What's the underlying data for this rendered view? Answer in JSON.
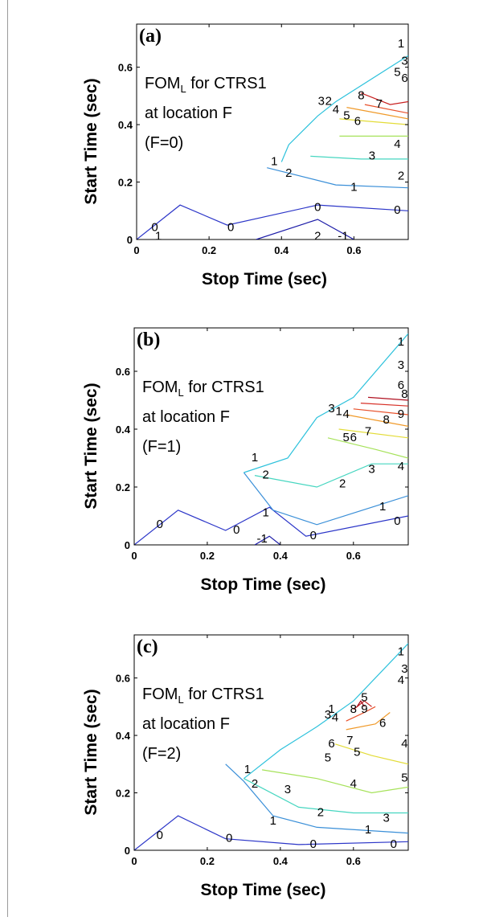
{
  "chart_data": [
    {
      "type": "contour",
      "panel_label": "(a)",
      "annotation_lines": [
        {
          "text": "FOM",
          "subscript": "L",
          "rest": " for CTRS1"
        },
        {
          "text": "at location F"
        },
        {
          "text": "(F=0)"
        }
      ],
      "xlabel": "Stop Time (sec)",
      "ylabel": "Start Time (sec)",
      "xlim": [
        0,
        0.75
      ],
      "ylim": [
        0,
        0.75
      ],
      "xticks": [
        0,
        0.2,
        0.4,
        0.6
      ],
      "yticks": [
        0,
        0.2,
        0.4,
        0.6
      ],
      "xtick_labels": [
        "0",
        "0.2",
        "0.4",
        "0.6"
      ],
      "ytick_labels": [
        "0",
        "0.2",
        "0.4",
        "0.6"
      ],
      "contours": [
        {
          "level": "-1",
          "color": "#1c1ca8",
          "points": [
            [
              0.33,
              0.0
            ],
            [
              0.5,
              0.07
            ],
            [
              0.6,
              0.0
            ]
          ]
        },
        {
          "level": "0",
          "color": "#2b35c8",
          "points": [
            [
              0.0,
              0.0
            ],
            [
              0.12,
              0.12
            ],
            [
              0.25,
              0.05
            ],
            [
              0.5,
              0.12
            ],
            [
              0.75,
              0.1
            ]
          ]
        },
        {
          "level": "1",
          "color": "#3a8fd8",
          "points": [
            [
              0.36,
              0.25
            ],
            [
              0.55,
              0.19
            ],
            [
              0.75,
              0.18
            ]
          ]
        },
        {
          "level": "2",
          "color": "#2ec2dc",
          "points": [
            [
              0.4,
              0.27
            ],
            [
              0.42,
              0.33
            ],
            [
              0.5,
              0.43
            ],
            [
              0.55,
              0.48
            ],
            [
              0.75,
              0.64
            ]
          ]
        },
        {
          "level": "3",
          "color": "#46d6c0",
          "points": [
            [
              0.48,
              0.29
            ],
            [
              0.62,
              0.28
            ],
            [
              0.75,
              0.28
            ]
          ]
        },
        {
          "level": "4",
          "color": "#a6e25a",
          "points": [
            [
              0.56,
              0.36
            ],
            [
              0.68,
              0.36
            ],
            [
              0.75,
              0.36
            ]
          ]
        },
        {
          "level": "5",
          "color": "#e3dc38",
          "points": [
            [
              0.56,
              0.42
            ],
            [
              0.75,
              0.4
            ]
          ]
        },
        {
          "level": "6",
          "color": "#f09a2a",
          "points": [
            [
              0.58,
              0.46
            ],
            [
              0.75,
              0.42
            ]
          ]
        },
        {
          "level": "7",
          "color": "#e8502a",
          "points": [
            [
              0.63,
              0.47
            ],
            [
              0.75,
              0.44
            ]
          ]
        },
        {
          "level": "8",
          "color": "#c81e1e",
          "points": [
            [
              0.62,
              0.51
            ],
            [
              0.7,
              0.47
            ],
            [
              0.75,
              0.48
            ]
          ]
        }
      ],
      "labels": [
        {
          "text": "0",
          "x": 0.05,
          "y": 0.04
        },
        {
          "text": "0",
          "x": 0.26,
          "y": 0.04
        },
        {
          "text": "0",
          "x": 0.5,
          "y": 0.11
        },
        {
          "text": "0",
          "x": 0.72,
          "y": 0.1
        },
        {
          "text": "1",
          "x": 0.06,
          "y": 0.01
        },
        {
          "text": "1",
          "x": 0.38,
          "y": 0.27
        },
        {
          "text": "1",
          "x": 0.6,
          "y": 0.18
        },
        {
          "text": "2",
          "x": 0.42,
          "y": 0.23
        },
        {
          "text": "2",
          "x": 0.73,
          "y": 0.22
        },
        {
          "text": "3",
          "x": 0.65,
          "y": 0.29
        },
        {
          "text": "4",
          "x": 0.72,
          "y": 0.33
        },
        {
          "text": "5",
          "x": 0.58,
          "y": 0.43
        },
        {
          "text": "6",
          "x": 0.61,
          "y": 0.41
        },
        {
          "text": "7",
          "x": 0.67,
          "y": 0.47
        },
        {
          "text": "8",
          "x": 0.62,
          "y": 0.5
        },
        {
          "text": "2",
          "x": 0.53,
          "y": 0.48
        },
        {
          "text": "3",
          "x": 0.51,
          "y": 0.48
        },
        {
          "text": "4",
          "x": 0.55,
          "y": 0.45
        },
        {
          "text": "5",
          "x": 0.72,
          "y": 0.58
        },
        {
          "text": "6",
          "x": 0.74,
          "y": 0.56
        },
        {
          "text": "3",
          "x": 0.74,
          "y": 0.62
        },
        {
          "text": "1",
          "x": 0.73,
          "y": 0.68
        },
        {
          "text": "2",
          "x": 0.5,
          "y": 0.01
        },
        {
          "text": "-1",
          "x": 0.57,
          "y": 0.01
        }
      ]
    },
    {
      "type": "contour",
      "panel_label": "(b)",
      "annotation_lines": [
        {
          "text": "FOM",
          "subscript": "L",
          "rest": " for CTRS1"
        },
        {
          "text": "at location F"
        },
        {
          "text": "(F=1)"
        }
      ],
      "xlabel": "Stop Time (sec)",
      "ylabel": "Start Time (sec)",
      "xlim": [
        0,
        0.75
      ],
      "ylim": [
        0,
        0.75
      ],
      "xticks": [
        0,
        0.2,
        0.4,
        0.6
      ],
      "yticks": [
        0,
        0.2,
        0.4,
        0.6
      ],
      "xtick_labels": [
        "0",
        "0.2",
        "0.4",
        "0.6"
      ],
      "ytick_labels": [
        "0",
        "0.2",
        "0.4",
        "0.6"
      ],
      "contours": [
        {
          "level": "-1",
          "color": "#1c1ca8",
          "points": [
            [
              0.33,
              0.0
            ],
            [
              0.37,
              0.03
            ],
            [
              0.4,
              0.0
            ]
          ]
        },
        {
          "level": "0",
          "color": "#2b35c8",
          "points": [
            [
              0.0,
              0.0
            ],
            [
              0.12,
              0.12
            ],
            [
              0.25,
              0.05
            ],
            [
              0.37,
              0.13
            ],
            [
              0.47,
              0.03
            ],
            [
              0.75,
              0.1
            ]
          ]
        },
        {
          "level": "1",
          "color": "#3a8fd8",
          "points": [
            [
              0.3,
              0.25
            ],
            [
              0.38,
              0.12
            ],
            [
              0.5,
              0.07
            ],
            [
              0.75,
              0.17
            ]
          ]
        },
        {
          "level": "2",
          "color": "#2ec2dc",
          "points": [
            [
              0.3,
              0.25
            ],
            [
              0.42,
              0.3
            ],
            [
              0.5,
              0.44
            ],
            [
              0.6,
              0.51
            ],
            [
              0.75,
              0.73
            ]
          ]
        },
        {
          "level": "3",
          "color": "#46d6c0",
          "points": [
            [
              0.33,
              0.24
            ],
            [
              0.5,
              0.2
            ],
            [
              0.65,
              0.28
            ],
            [
              0.75,
              0.28
            ]
          ]
        },
        {
          "level": "4",
          "color": "#a6e25a",
          "points": [
            [
              0.53,
              0.37
            ],
            [
              0.66,
              0.33
            ],
            [
              0.75,
              0.3
            ]
          ]
        },
        {
          "level": "5",
          "color": "#e3dc38",
          "points": [
            [
              0.56,
              0.4
            ],
            [
              0.75,
              0.37
            ]
          ]
        },
        {
          "level": "6",
          "color": "#f09a2a",
          "points": [
            [
              0.58,
              0.45
            ],
            [
              0.75,
              0.41
            ]
          ]
        },
        {
          "level": "7",
          "color": "#e8502a",
          "points": [
            [
              0.6,
              0.47
            ],
            [
              0.75,
              0.45
            ]
          ]
        },
        {
          "level": "8",
          "color": "#d73027",
          "points": [
            [
              0.62,
              0.49
            ],
            [
              0.75,
              0.48
            ]
          ]
        },
        {
          "level": "9",
          "color": "#b01020",
          "points": [
            [
              0.64,
              0.51
            ],
            [
              0.75,
              0.5
            ]
          ]
        }
      ],
      "labels": [
        {
          "text": "0",
          "x": 0.07,
          "y": 0.07
        },
        {
          "text": "0",
          "x": 0.28,
          "y": 0.05
        },
        {
          "text": "0",
          "x": 0.49,
          "y": 0.03
        },
        {
          "text": "0",
          "x": 0.72,
          "y": 0.08
        },
        {
          "text": "1",
          "x": 0.36,
          "y": 0.11
        },
        {
          "text": "1",
          "x": 0.68,
          "y": 0.13
        },
        {
          "text": "1",
          "x": 0.33,
          "y": 0.3
        },
        {
          "text": "2",
          "x": 0.36,
          "y": 0.24
        },
        {
          "text": "2",
          "x": 0.57,
          "y": 0.21
        },
        {
          "text": "3",
          "x": 0.65,
          "y": 0.26
        },
        {
          "text": "4",
          "x": 0.73,
          "y": 0.27
        },
        {
          "text": "5",
          "x": 0.58,
          "y": 0.37
        },
        {
          "text": "6",
          "x": 0.6,
          "y": 0.37
        },
        {
          "text": "7",
          "x": 0.64,
          "y": 0.39
        },
        {
          "text": "8",
          "x": 0.69,
          "y": 0.43
        },
        {
          "text": "9",
          "x": 0.73,
          "y": 0.45
        },
        {
          "text": "3",
          "x": 0.54,
          "y": 0.47
        },
        {
          "text": "1",
          "x": 0.56,
          "y": 0.46
        },
        {
          "text": "4",
          "x": 0.58,
          "y": 0.45
        },
        {
          "text": "3",
          "x": 0.73,
          "y": 0.62
        },
        {
          "text": "1",
          "x": 0.73,
          "y": 0.7
        },
        {
          "text": "6",
          "x": 0.73,
          "y": 0.55
        },
        {
          "text": "8",
          "x": 0.74,
          "y": 0.52
        },
        {
          "text": "-1",
          "x": 0.35,
          "y": 0.02
        }
      ]
    },
    {
      "type": "contour",
      "panel_label": "(c)",
      "annotation_lines": [
        {
          "text": "FOM",
          "subscript": "L",
          "rest": " for CTRS1"
        },
        {
          "text": "at location F"
        },
        {
          "text": "(F=2)"
        }
      ],
      "xlabel": "Stop Time (sec)",
      "ylabel": "Start Time (sec)",
      "xlim": [
        0,
        0.75
      ],
      "ylim": [
        0,
        0.75
      ],
      "xticks": [
        0,
        0.2,
        0.4,
        0.6
      ],
      "yticks": [
        0,
        0.2,
        0.4,
        0.6
      ],
      "xtick_labels": [
        "0",
        "0.2",
        "0.4",
        "0.6"
      ],
      "ytick_labels": [
        "0",
        "0.2",
        "0.4",
        "0.6"
      ],
      "contours": [
        {
          "level": "0",
          "color": "#2b35c8",
          "points": [
            [
              0.0,
              0.0
            ],
            [
              0.12,
              0.12
            ],
            [
              0.25,
              0.04
            ],
            [
              0.45,
              0.02
            ],
            [
              0.75,
              0.03
            ]
          ]
        },
        {
          "level": "1",
          "color": "#3a8fd8",
          "points": [
            [
              0.25,
              0.3
            ],
            [
              0.3,
              0.24
            ],
            [
              0.38,
              0.12
            ],
            [
              0.5,
              0.08
            ],
            [
              0.75,
              0.06
            ]
          ]
        },
        {
          "level": "2",
          "color": "#2ec2dc",
          "points": [
            [
              0.3,
              0.25
            ],
            [
              0.4,
              0.35
            ],
            [
              0.5,
              0.43
            ],
            [
              0.6,
              0.52
            ],
            [
              0.75,
              0.72
            ]
          ]
        },
        {
          "level": "3",
          "color": "#46d6c0",
          "points": [
            [
              0.3,
              0.25
            ],
            [
              0.45,
              0.15
            ],
            [
              0.6,
              0.13
            ],
            [
              0.75,
              0.13
            ]
          ]
        },
        {
          "level": "4",
          "color": "#a6e25a",
          "points": [
            [
              0.35,
              0.28
            ],
            [
              0.5,
              0.25
            ],
            [
              0.65,
              0.2
            ],
            [
              0.75,
              0.22
            ]
          ]
        },
        {
          "level": "5",
          "color": "#e3dc38",
          "points": [
            [
              0.55,
              0.37
            ],
            [
              0.65,
              0.33
            ],
            [
              0.75,
              0.3
            ]
          ]
        },
        {
          "level": "6",
          "color": "#f09a2a",
          "points": [
            [
              0.58,
              0.42
            ],
            [
              0.66,
              0.44
            ],
            [
              0.7,
              0.48
            ]
          ]
        },
        {
          "level": "7",
          "color": "#e8502a",
          "points": [
            [
              0.58,
              0.45
            ],
            [
              0.63,
              0.48
            ],
            [
              0.66,
              0.5
            ]
          ]
        },
        {
          "level": "8",
          "color": "#c81e1e",
          "points": [
            [
              0.6,
              0.49
            ],
            [
              0.63,
              0.52
            ],
            [
              0.65,
              0.5
            ]
          ]
        },
        {
          "level": "9",
          "color": "#a00010",
          "points": [
            [
              0.61,
              0.5
            ],
            [
              0.62,
              0.52
            ],
            [
              0.63,
              0.5
            ]
          ]
        }
      ],
      "labels": [
        {
          "text": "0",
          "x": 0.07,
          "y": 0.05
        },
        {
          "text": "0",
          "x": 0.26,
          "y": 0.04
        },
        {
          "text": "0",
          "x": 0.49,
          "y": 0.02
        },
        {
          "text": "0",
          "x": 0.71,
          "y": 0.02
        },
        {
          "text": "1",
          "x": 0.38,
          "y": 0.1
        },
        {
          "text": "1",
          "x": 0.64,
          "y": 0.07
        },
        {
          "text": "1",
          "x": 0.31,
          "y": 0.28
        },
        {
          "text": "2",
          "x": 0.33,
          "y": 0.23
        },
        {
          "text": "2",
          "x": 0.51,
          "y": 0.13
        },
        {
          "text": "3",
          "x": 0.42,
          "y": 0.21
        },
        {
          "text": "3",
          "x": 0.69,
          "y": 0.11
        },
        {
          "text": "4",
          "x": 0.6,
          "y": 0.23
        },
        {
          "text": "5",
          "x": 0.53,
          "y": 0.32
        },
        {
          "text": "5",
          "x": 0.61,
          "y": 0.34
        },
        {
          "text": "6",
          "x": 0.54,
          "y": 0.37
        },
        {
          "text": "7",
          "x": 0.59,
          "y": 0.38
        },
        {
          "text": "6",
          "x": 0.68,
          "y": 0.44
        },
        {
          "text": "8",
          "x": 0.6,
          "y": 0.49
        },
        {
          "text": "9",
          "x": 0.63,
          "y": 0.49
        },
        {
          "text": "5",
          "x": 0.63,
          "y": 0.53
        },
        {
          "text": "4",
          "x": 0.55,
          "y": 0.46
        },
        {
          "text": "3",
          "x": 0.53,
          "y": 0.47
        },
        {
          "text": "1",
          "x": 0.54,
          "y": 0.49
        },
        {
          "text": "4",
          "x": 0.73,
          "y": 0.59
        },
        {
          "text": "3",
          "x": 0.74,
          "y": 0.63
        },
        {
          "text": "1",
          "x": 0.73,
          "y": 0.69
        },
        {
          "text": "4",
          "x": 0.74,
          "y": 0.37
        },
        {
          "text": "5",
          "x": 0.74,
          "y": 0.25
        }
      ]
    }
  ]
}
